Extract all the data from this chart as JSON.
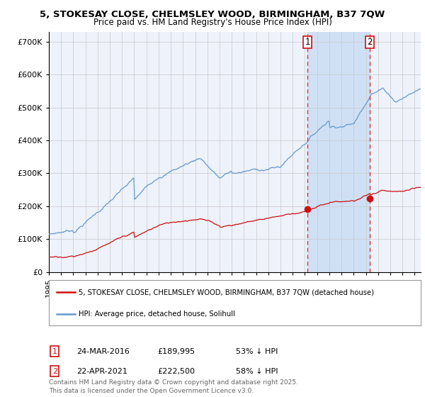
{
  "title_line1": "5, STOKESAY CLOSE, CHELMSLEY WOOD, BIRMINGHAM, B37 7QW",
  "title_line2": "Price paid vs. HM Land Registry's House Price Index (HPI)",
  "legend_red": "5, STOKESAY CLOSE, CHELMSLEY WOOD, BIRMINGHAM, B37 7QW (detached house)",
  "legend_blue": "HPI: Average price, detached house, Solihull",
  "transaction1_date": "24-MAR-2016",
  "transaction1_price": 189995,
  "transaction1_hpi": "53% ↓ HPI",
  "transaction2_date": "22-APR-2021",
  "transaction2_price": 222500,
  "transaction2_hpi": "58% ↓ HPI",
  "footer": "Contains HM Land Registry data © Crown copyright and database right 2025.\nThis data is licensed under the Open Government Licence v3.0.",
  "background_color": "#ffffff",
  "plot_bg_color": "#eef2fb",
  "highlight_bg": "#cfe0f5",
  "grid_color": "#c8c8c8",
  "blue_line_color": "#6699cc",
  "red_line_color": "#cc1111",
  "dashed_line_color": "#dd3333",
  "marker_color": "#cc1111",
  "ylim": [
    0,
    730000
  ],
  "yticks": [
    0,
    100000,
    200000,
    300000,
    400000,
    500000,
    600000,
    700000
  ],
  "year_start": 1995,
  "year_end": 2025,
  "transaction1_year": 2016.22,
  "transaction2_year": 2021.3
}
